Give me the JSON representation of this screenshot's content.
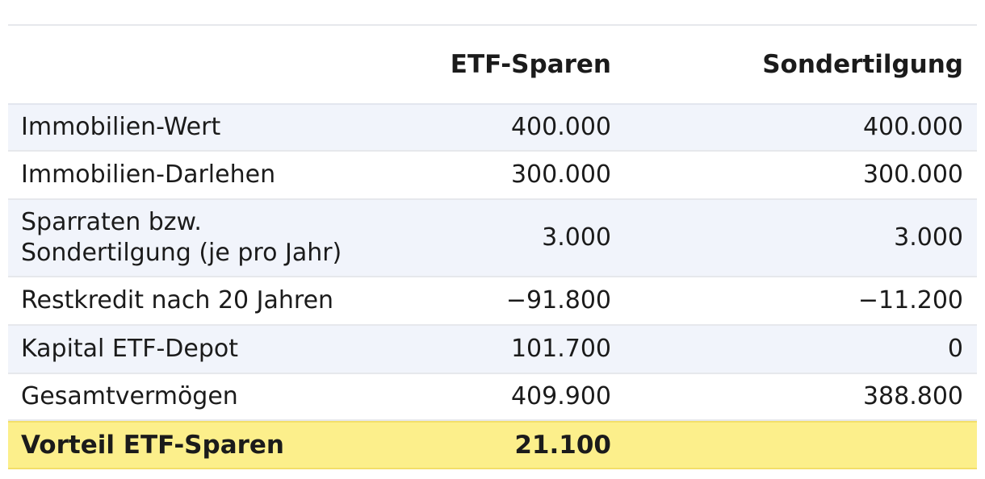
{
  "header": {
    "col_etf": "ETF-Sparen",
    "col_sondertilgung": "Sondertilgung"
  },
  "rows": [
    {
      "label": "Immobilien-Wert",
      "etf": "400.000",
      "sondertilgung": "400.000"
    },
    {
      "label": "Immobilien-Darlehen",
      "etf": "300.000",
      "sondertilgung": "300.000"
    },
    {
      "label_line1": "Sparraten bzw.",
      "label_line2": "Sondertilgung (je pro Jahr)",
      "etf": "3.000",
      "sondertilgung": "3.000"
    },
    {
      "label": "Restkredit nach 20 Jahren",
      "etf": "−91.800",
      "sondertilgung": "−11.200"
    },
    {
      "label": "Kapital ETF-Depot",
      "etf": "101.700",
      "sondertilgung": "0"
    },
    {
      "label": "Gesamtvermögen",
      "etf": "409.900",
      "sondertilgung": "388.800"
    }
  ],
  "total": {
    "label": "Vorteil ETF-Sparen",
    "etf": "21.100",
    "sondertilgung": ""
  },
  "colors": {
    "row_alt": "#f1f4fb",
    "highlight": "#fcef8b",
    "border": "#e6e8ec"
  }
}
